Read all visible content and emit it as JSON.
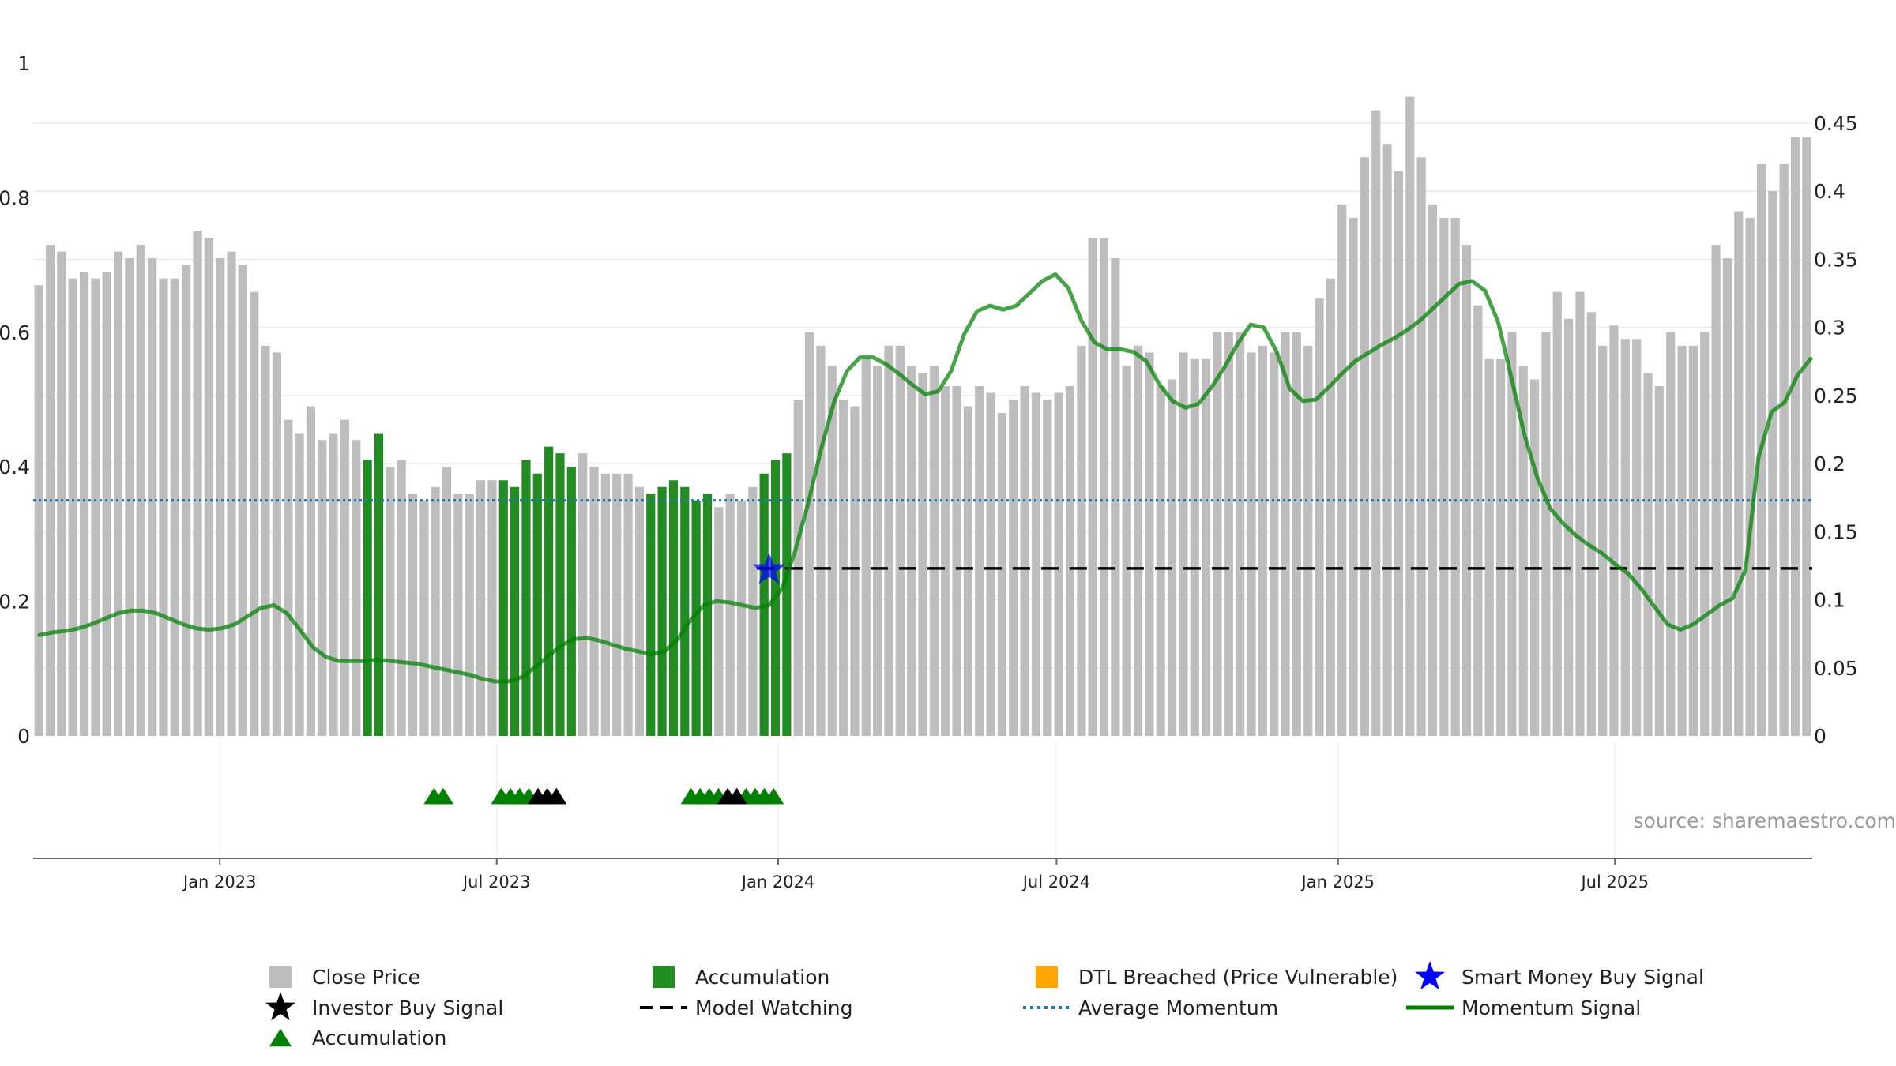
{
  "chart_data": {
    "type": "bar+line",
    "source_label": "source: sharemaestro.com",
    "left_axis": {
      "ylim": [
        0,
        1
      ],
      "ticks": [
        "0",
        "0.2",
        "0.4",
        "0.6",
        "0.8",
        "1"
      ]
    },
    "right_axis": {
      "ylim": [
        0,
        0.45
      ],
      "ticks": [
        "0",
        "0.05",
        "0.1",
        "0.15",
        "0.2",
        "0.25",
        "0.3",
        "0.35",
        "0.4",
        "0.45"
      ]
    },
    "x_axis": {
      "start": "2022-09-01",
      "end": "2025-11-07",
      "tick_labels": [
        "Jan 2023",
        "Jul 2023",
        "Jan 2024",
        "Jul 2024",
        "Jan 2025",
        "Jul 2025"
      ],
      "tick_dates": [
        "2023-01-01",
        "2023-07-01",
        "2024-01-01",
        "2024-07-01",
        "2025-01-01",
        "2025-07-01"
      ]
    },
    "grid": true,
    "colors": {
      "close_price": "#bdbdbd",
      "accumulation": "#228B22",
      "dtl_breached": "#FFA500",
      "smart_money": "#0000ff",
      "momentum": "#008000",
      "average_momentum": "#1f77b4",
      "model_watching": "#000000",
      "investor_buy": "#000000"
    },
    "series": {
      "close_price": [
        0.67,
        0.73,
        0.72,
        0.68,
        0.69,
        0.68,
        0.69,
        0.72,
        0.71,
        0.73,
        0.71,
        0.68,
        0.68,
        0.7,
        0.75,
        0.74,
        0.71,
        0.72,
        0.7,
        0.66,
        0.58,
        0.57,
        0.47,
        0.45,
        0.49,
        0.44,
        0.45,
        0.47,
        0.44,
        0.41,
        0.45,
        0.4,
        0.41,
        0.36,
        0.35,
        0.37,
        0.4,
        0.36,
        0.36,
        0.38,
        0.38,
        0.38,
        0.37,
        0.41,
        0.39,
        0.43,
        0.42,
        0.4,
        0.42,
        0.4,
        0.39,
        0.39,
        0.39,
        0.37,
        0.36,
        0.37,
        0.38,
        0.37,
        0.35,
        0.36,
        0.34,
        0.36,
        0.35,
        0.37,
        0.39,
        0.41,
        0.42,
        0.5,
        0.6,
        0.58,
        0.55,
        0.5,
        0.49,
        0.56,
        0.55,
        0.58,
        0.58,
        0.55,
        0.54,
        0.55,
        0.52,
        0.52,
        0.49,
        0.52,
        0.51,
        0.48,
        0.5,
        0.52,
        0.51,
        0.5,
        0.51,
        0.52,
        0.58,
        0.74,
        0.74,
        0.71,
        0.55,
        0.58,
        0.57,
        0.52,
        0.53,
        0.57,
        0.56,
        0.56,
        0.6,
        0.6,
        0.6,
        0.57,
        0.58,
        0.57,
        0.6,
        0.6,
        0.58,
        0.65,
        0.68,
        0.79,
        0.77,
        0.86,
        0.93,
        0.88,
        0.84,
        0.95,
        0.86,
        0.79,
        0.77,
        0.77,
        0.73,
        0.64,
        0.56,
        0.56,
        0.6,
        0.55,
        0.53,
        0.6,
        0.66,
        0.62,
        0.66,
        0.63,
        0.58,
        0.61,
        0.59,
        0.59,
        0.54,
        0.52,
        0.6,
        0.58,
        0.58,
        0.6,
        0.73,
        0.71,
        0.78,
        0.77,
        0.85,
        0.81,
        0.85,
        0.89,
        0.89
      ],
      "accumulation_bar_indices": [
        29,
        30,
        41,
        42,
        43,
        44,
        45,
        46,
        47,
        54,
        55,
        56,
        57,
        58,
        59,
        64,
        65,
        66
      ],
      "momentum_signal": [
        0.074,
        0.076,
        0.077,
        0.079,
        0.082,
        0.086,
        0.09,
        0.092,
        0.092,
        0.09,
        0.086,
        0.082,
        0.079,
        0.078,
        0.079,
        0.082,
        0.088,
        0.094,
        0.096,
        0.09,
        0.078,
        0.065,
        0.058,
        0.055,
        0.055,
        0.055,
        0.056,
        0.055,
        0.054,
        0.053,
        0.051,
        0.049,
        0.047,
        0.045,
        0.042,
        0.04,
        0.04,
        0.043,
        0.05,
        0.058,
        0.066,
        0.071,
        0.072,
        0.07,
        0.067,
        0.064,
        0.062,
        0.06,
        0.062,
        0.071,
        0.085,
        0.096,
        0.099,
        0.098,
        0.096,
        0.094,
        0.096,
        0.108,
        0.135,
        0.17,
        0.21,
        0.245,
        0.268,
        0.278,
        0.278,
        0.273,
        0.266,
        0.258,
        0.251,
        0.253,
        0.268,
        0.295,
        0.312,
        0.316,
        0.313,
        0.316,
        0.325,
        0.334,
        0.339,
        0.329,
        0.305,
        0.289,
        0.284,
        0.284,
        0.282,
        0.275,
        0.258,
        0.246,
        0.241,
        0.244,
        0.256,
        0.271,
        0.288,
        0.302,
        0.3,
        0.282,
        0.255,
        0.246,
        0.247,
        0.256,
        0.266,
        0.275,
        0.281,
        0.287,
        0.292,
        0.298,
        0.305,
        0.314,
        0.323,
        0.332,
        0.334,
        0.327,
        0.304,
        0.264,
        0.222,
        0.19,
        0.167,
        0.156,
        0.147,
        0.14,
        0.134,
        0.126,
        0.119,
        0.108,
        0.095,
        0.082,
        0.078,
        0.082,
        0.089,
        0.096,
        0.101,
        0.122,
        0.205,
        0.238,
        0.245,
        0.265,
        0.277
      ],
      "average_momentum": 0.173,
      "model_watching": {
        "level": 0.123,
        "start": "2023-12-18"
      },
      "smart_money_buy_signals": [
        {
          "date": "2023-12-26",
          "value": 0.122
        }
      ],
      "accumulation_markers": [
        "2023-05-21",
        "2023-05-27",
        "2023-07-04",
        "2023-07-10",
        "2023-07-16",
        "2023-07-22",
        "2023-11-05",
        "2023-11-11",
        "2023-11-17",
        "2023-11-23",
        "2023-12-11",
        "2023-12-17",
        "2023-12-23",
        "2023-12-29"
      ],
      "investor_buy_markers": [
        "2023-07-28",
        "2023-08-03",
        "2023-08-09",
        "2023-11-29",
        "2023-12-05"
      ]
    },
    "legend": {
      "placement": "bottom",
      "items": [
        {
          "label": "Close Price",
          "symbol": "square",
          "color": "#bdbdbd"
        },
        {
          "label": "Accumulation",
          "symbol": "square",
          "color": "#228B22"
        },
        {
          "label": "DTL Breached (Price Vulnerable)",
          "symbol": "square",
          "color": "#FFA500"
        },
        {
          "label": "Smart Money Buy Signal",
          "symbol": "star",
          "color": "#0000ff"
        },
        {
          "label": "Investor Buy Signal",
          "symbol": "star",
          "color": "#000000"
        },
        {
          "label": "Model Watching",
          "symbol": "dash",
          "color": "#000000"
        },
        {
          "label": "Average Momentum",
          "symbol": "dot",
          "color": "#1f77b4"
        },
        {
          "label": "Momentum Signal",
          "symbol": "line",
          "color": "#008000"
        },
        {
          "label": "Accumulation",
          "symbol": "triangle",
          "color": "#008000"
        }
      ]
    }
  }
}
